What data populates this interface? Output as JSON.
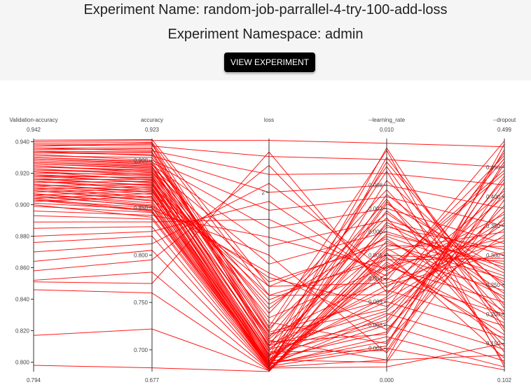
{
  "header": {
    "title": "Experiment Name: random-job-parrallel-4-try-100-add-loss",
    "namespace": "Experiment Namespace: admin",
    "button_label": "VIEW EXPERIMENT"
  },
  "colors": {
    "line": "#ff0000",
    "header_bg": "#f5f5f5",
    "button_bg": "#000000"
  },
  "chart_data": {
    "type": "parallel-coordinates",
    "dimensions": [
      {
        "name": "Validation-accuracy",
        "label": "Validation-accuracy",
        "max_label": "0.942",
        "min_label": "0.794",
        "range": [
          0.794,
          0.942
        ],
        "ticks": [
          {
            "value": 0.94,
            "label": "0.940"
          },
          {
            "value": 0.92,
            "label": "0.920"
          },
          {
            "value": 0.9,
            "label": "0.900"
          },
          {
            "value": 0.88,
            "label": "0.880"
          },
          {
            "value": 0.86,
            "label": "0.860"
          },
          {
            "value": 0.84,
            "label": "0.840"
          },
          {
            "value": 0.82,
            "label": "0.820"
          },
          {
            "value": 0.8,
            "label": "0.800"
          }
        ]
      },
      {
        "name": "accuracy",
        "label": "accuracy",
        "max_label": "0.923",
        "min_label": "0.677",
        "range": [
          0.677,
          0.923
        ],
        "ticks": [
          {
            "value": 0.9,
            "label": "0.900"
          },
          {
            "value": 0.85,
            "label": "0.850"
          },
          {
            "value": 0.8,
            "label": "0.800"
          },
          {
            "value": 0.75,
            "label": "0.750"
          },
          {
            "value": 0.7,
            "label": "0.700"
          }
        ]
      },
      {
        "name": "loss",
        "label": "loss",
        "max_label": "",
        "min_label": "",
        "range": [
          0,
          2.6
        ],
        "ticks": [
          {
            "value": 2,
            "label": "2"
          }
        ]
      },
      {
        "name": "--learning_rate",
        "label": "--learning_rate",
        "max_label": "0.010",
        "min_label": "0.000",
        "range": [
          0.0,
          0.01
        ],
        "ticks": [
          {
            "value": 0.008,
            "label": "0.008"
          },
          {
            "value": 0.007,
            "label": "0.007"
          },
          {
            "value": 0.006,
            "label": "0.006"
          },
          {
            "value": 0.005,
            "label": "0.005"
          },
          {
            "value": 0.004,
            "label": "0.004"
          },
          {
            "value": 0.003,
            "label": "0.003"
          },
          {
            "value": 0.002,
            "label": "0.002"
          },
          {
            "value": 0.001,
            "label": "0.001"
          }
        ]
      },
      {
        "name": "--dropout",
        "label": "--dropout",
        "max_label": "0.499",
        "min_label": "0.102",
        "range": [
          0.102,
          0.499
        ],
        "ticks": [
          {
            "value": 0.45,
            "label": "0.450"
          },
          {
            "value": 0.4,
            "label": "0.400"
          },
          {
            "value": 0.35,
            "label": "0.350"
          },
          {
            "value": 0.3,
            "label": "0.300"
          },
          {
            "value": 0.25,
            "label": "0.250"
          },
          {
            "value": 0.2,
            "label": "0.200"
          },
          {
            "value": 0.15,
            "label": "0.150"
          }
        ]
      }
    ],
    "rows": [
      [
        0.94,
        0.921,
        2.58,
        0.0098,
        0.485
      ],
      [
        0.938,
        0.915,
        2.4,
        0.0091,
        0.45
      ],
      [
        0.936,
        0.91,
        2.2,
        0.0085,
        0.42
      ],
      [
        0.934,
        0.905,
        2.0,
        0.008,
        0.38
      ],
      [
        0.932,
        0.9,
        1.8,
        0.0075,
        0.35
      ],
      [
        0.93,
        0.898,
        1.6,
        0.007,
        0.32
      ],
      [
        0.928,
        0.895,
        1.4,
        0.0065,
        0.3
      ],
      [
        0.926,
        0.892,
        1.2,
        0.006,
        0.28
      ],
      [
        0.924,
        0.89,
        1.0,
        0.0055,
        0.26
      ],
      [
        0.922,
        0.888,
        0.8,
        0.005,
        0.24
      ],
      [
        0.92,
        0.885,
        0.6,
        0.0045,
        0.22
      ],
      [
        0.918,
        0.882,
        0.4,
        0.004,
        0.2
      ],
      [
        0.916,
        0.88,
        0.3,
        0.0035,
        0.18
      ],
      [
        0.914,
        0.878,
        0.2,
        0.003,
        0.16
      ],
      [
        0.912,
        0.875,
        0.15,
        0.0025,
        0.14
      ],
      [
        0.91,
        0.872,
        0.1,
        0.002,
        0.12
      ],
      [
        0.908,
        0.87,
        0.08,
        0.0015,
        0.11
      ],
      [
        0.906,
        0.868,
        0.06,
        0.001,
        0.105
      ],
      [
        0.904,
        0.865,
        0.05,
        0.0005,
        0.13
      ],
      [
        0.902,
        0.862,
        0.04,
        0.0002,
        0.15
      ],
      [
        0.937,
        0.918,
        0.5,
        0.0095,
        0.11
      ],
      [
        0.935,
        0.912,
        0.35,
        0.0005,
        0.49
      ],
      [
        0.933,
        0.908,
        0.45,
        0.0088,
        0.17
      ],
      [
        0.931,
        0.903,
        0.55,
        0.0012,
        0.46
      ],
      [
        0.929,
        0.896,
        0.65,
        0.0078,
        0.2
      ],
      [
        0.927,
        0.893,
        0.25,
        0.0022,
        0.43
      ],
      [
        0.925,
        0.887,
        0.7,
        0.0068,
        0.235
      ],
      [
        0.923,
        0.884,
        0.18,
        0.0032,
        0.4
      ],
      [
        0.921,
        0.879,
        0.75,
        0.0058,
        0.265
      ],
      [
        0.919,
        0.876,
        0.12,
        0.0042,
        0.37
      ],
      [
        0.917,
        0.873,
        0.85,
        0.0048,
        0.295
      ],
      [
        0.915,
        0.869,
        0.09,
        0.0052,
        0.34
      ],
      [
        0.913,
        0.866,
        0.95,
        0.0038,
        0.325
      ],
      [
        0.911,
        0.861,
        0.07,
        0.0062,
        0.31
      ],
      [
        0.909,
        0.858,
        1.05,
        0.0028,
        0.355
      ],
      [
        0.907,
        0.855,
        0.06,
        0.0072,
        0.275
      ],
      [
        0.905,
        0.852,
        1.1,
        0.0018,
        0.385
      ],
      [
        0.903,
        0.85,
        0.05,
        0.0082,
        0.245
      ],
      [
        0.901,
        0.848,
        1.3,
        0.0008,
        0.415
      ],
      [
        0.899,
        0.845,
        0.04,
        0.0092,
        0.21
      ],
      [
        0.896,
        0.842,
        1.5,
        0.0044,
        0.445
      ],
      [
        0.893,
        0.838,
        0.03,
        0.0046,
        0.185
      ],
      [
        0.889,
        0.835,
        1.7,
        0.0041,
        0.47
      ],
      [
        0.885,
        0.83,
        0.03,
        0.0049,
        0.155
      ],
      [
        0.88,
        0.825,
        1.9,
        0.0039,
        0.495
      ],
      [
        0.876,
        0.82,
        0.02,
        0.0051,
        0.125
      ],
      [
        0.87,
        0.812,
        2.1,
        0.0043,
        0.44
      ],
      [
        0.864,
        0.805,
        0.02,
        0.0047,
        0.165
      ],
      [
        0.858,
        0.795,
        2.3,
        0.0036,
        0.41
      ],
      [
        0.852,
        0.782,
        0.02,
        0.0053,
        0.195
      ],
      [
        0.851,
        0.77,
        2.45,
        0.0034,
        0.36
      ],
      [
        0.846,
        0.76,
        0.01,
        0.0056,
        0.23
      ],
      [
        0.817,
        0.722,
        0.01,
        0.0045,
        0.33
      ],
      [
        0.798,
        0.681,
        0.0,
        0.005,
        0.29
      ],
      [
        0.941,
        0.922,
        0.95,
        0.0057,
        0.205
      ],
      [
        0.939,
        0.919,
        0.85,
        0.0033,
        0.465
      ],
      [
        0.936,
        0.913,
        0.48,
        0.0066,
        0.145
      ],
      [
        0.933,
        0.906,
        0.42,
        0.0027,
        0.475
      ],
      [
        0.93,
        0.899,
        0.38,
        0.0074,
        0.135
      ],
      [
        0.927,
        0.894,
        0.33,
        0.0016,
        0.455
      ],
      [
        0.924,
        0.889,
        0.28,
        0.0086,
        0.115
      ],
      [
        0.921,
        0.883,
        0.22,
        0.0009,
        0.425
      ],
      [
        0.918,
        0.877,
        0.17,
        0.0096,
        0.175
      ],
      [
        0.915,
        0.871,
        0.13,
        0.0004,
        0.395
      ],
      [
        0.912,
        0.864,
        0.11,
        0.009,
        0.215
      ],
      [
        0.909,
        0.857,
        0.09,
        0.0013,
        0.365
      ],
      [
        0.906,
        0.851,
        0.08,
        0.0076,
        0.25
      ],
      [
        0.903,
        0.846,
        0.07,
        0.0024,
        0.335
      ],
      [
        0.9,
        0.84,
        0.06,
        0.0064,
        0.27
      ],
      [
        0.938,
        0.917,
        0.26,
        0.0037,
        0.305
      ],
      [
        0.934,
        0.909,
        0.32,
        0.0054,
        0.315
      ],
      [
        0.929,
        0.897,
        0.44,
        0.0031,
        0.345
      ],
      [
        0.926,
        0.891,
        0.36,
        0.0059,
        0.285
      ],
      [
        0.922,
        0.886,
        0.29,
        0.0026,
        0.375
      ],
      [
        0.919,
        0.881,
        0.23,
        0.0063,
        0.255
      ],
      [
        0.916,
        0.874,
        0.19,
        0.0021,
        0.405
      ],
      [
        0.913,
        0.867,
        0.16,
        0.0069,
        0.225
      ],
      [
        0.91,
        0.86,
        0.14,
        0.0017,
        0.435
      ],
      [
        0.907,
        0.853,
        0.1,
        0.0073,
        0.19
      ],
      [
        0.904,
        0.847,
        0.09,
        0.0011,
        0.48
      ]
    ]
  }
}
